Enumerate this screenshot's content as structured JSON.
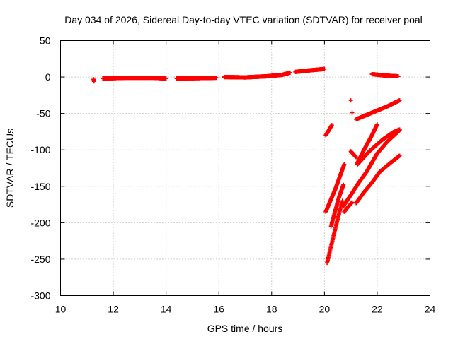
{
  "chart_data": {
    "type": "scatter",
    "title": "Day 034 of 2026, Sidereal Day-to-day VTEC variation (SDTVAR) for receiver poal",
    "xlabel": "GPS time / hours",
    "ylabel": "SDTVAR / TECUs",
    "xlim": [
      10,
      24
    ],
    "ylim": [
      -300,
      50
    ],
    "xticks": [
      10,
      12,
      14,
      16,
      18,
      20,
      22,
      24
    ],
    "yticks": [
      -300,
      -250,
      -200,
      -150,
      -100,
      -50,
      0,
      50
    ],
    "grid": true,
    "legend": "none",
    "marker": "plus",
    "color": "#ff0000",
    "segments": [
      {
        "x": [
          11.25,
          11.27
        ],
        "y": [
          -3,
          -6
        ]
      },
      {
        "x": [
          11.6,
          12.5,
          13.5,
          14.0
        ],
        "y": [
          -2,
          -1,
          -1,
          -2
        ]
      },
      {
        "x": [
          14.4,
          15.2,
          15.9
        ],
        "y": [
          -2,
          -1.5,
          -1
        ]
      },
      {
        "x": [
          16.2,
          17.0,
          17.8,
          18.4,
          18.7
        ],
        "y": [
          0,
          -0.5,
          1,
          3,
          6
        ]
      },
      {
        "x": [
          18.9,
          19.4,
          20.0
        ],
        "y": [
          7,
          9,
          11
        ]
      },
      {
        "x": [
          21.8,
          22.3,
          22.8
        ],
        "y": [
          4,
          2,
          1
        ]
      },
      {
        "x": [
          21.0
        ],
        "y": [
          -32
        ]
      },
      {
        "x": [
          21.05
        ],
        "y": [
          -49
        ]
      },
      {
        "x": [
          21.2,
          21.6,
          22.0,
          22.4,
          22.85
        ],
        "y": [
          -58,
          -52,
          -46,
          -40,
          -32
        ]
      },
      {
        "x": [
          20.05,
          20.15,
          20.28
        ],
        "y": [
          -80,
          -74,
          -66
        ]
      },
      {
        "x": [
          20.05,
          20.2,
          20.4,
          20.6,
          20.75
        ],
        "y": [
          -185,
          -172,
          -155,
          -135,
          -120
        ]
      },
      {
        "x": [
          20.1,
          20.3,
          20.5,
          20.68
        ],
        "y": [
          -255,
          -225,
          -195,
          -170
        ]
      },
      {
        "x": [
          20.25,
          20.4,
          20.55,
          20.72
        ],
        "y": [
          -205,
          -185,
          -165,
          -148
        ]
      },
      {
        "x": [
          20.7,
          21.0,
          21.3,
          21.6,
          22.0,
          22.4,
          22.85
        ],
        "y": [
          -178,
          -162,
          -145,
          -130,
          -105,
          -88,
          -73
        ]
      },
      {
        "x": [
          21.0,
          21.2
        ],
        "y": [
          -102,
          -110
        ]
      },
      {
        "x": [
          20.75,
          20.9,
          21.05
        ],
        "y": [
          -185,
          -178,
          -172
        ]
      },
      {
        "x": [
          21.25,
          21.5,
          21.8,
          22.0
        ],
        "y": [
          -118,
          -100,
          -80,
          -65
        ]
      },
      {
        "x": [
          21.2,
          21.5,
          21.8,
          22.1,
          22.5,
          22.85
        ],
        "y": [
          -173,
          -158,
          -145,
          -130,
          -118,
          -108
        ]
      },
      {
        "x": [
          21.25,
          21.7,
          22.2,
          22.6,
          22.85
        ],
        "y": [
          -120,
          -102,
          -86,
          -76,
          -72
        ]
      }
    ]
  }
}
